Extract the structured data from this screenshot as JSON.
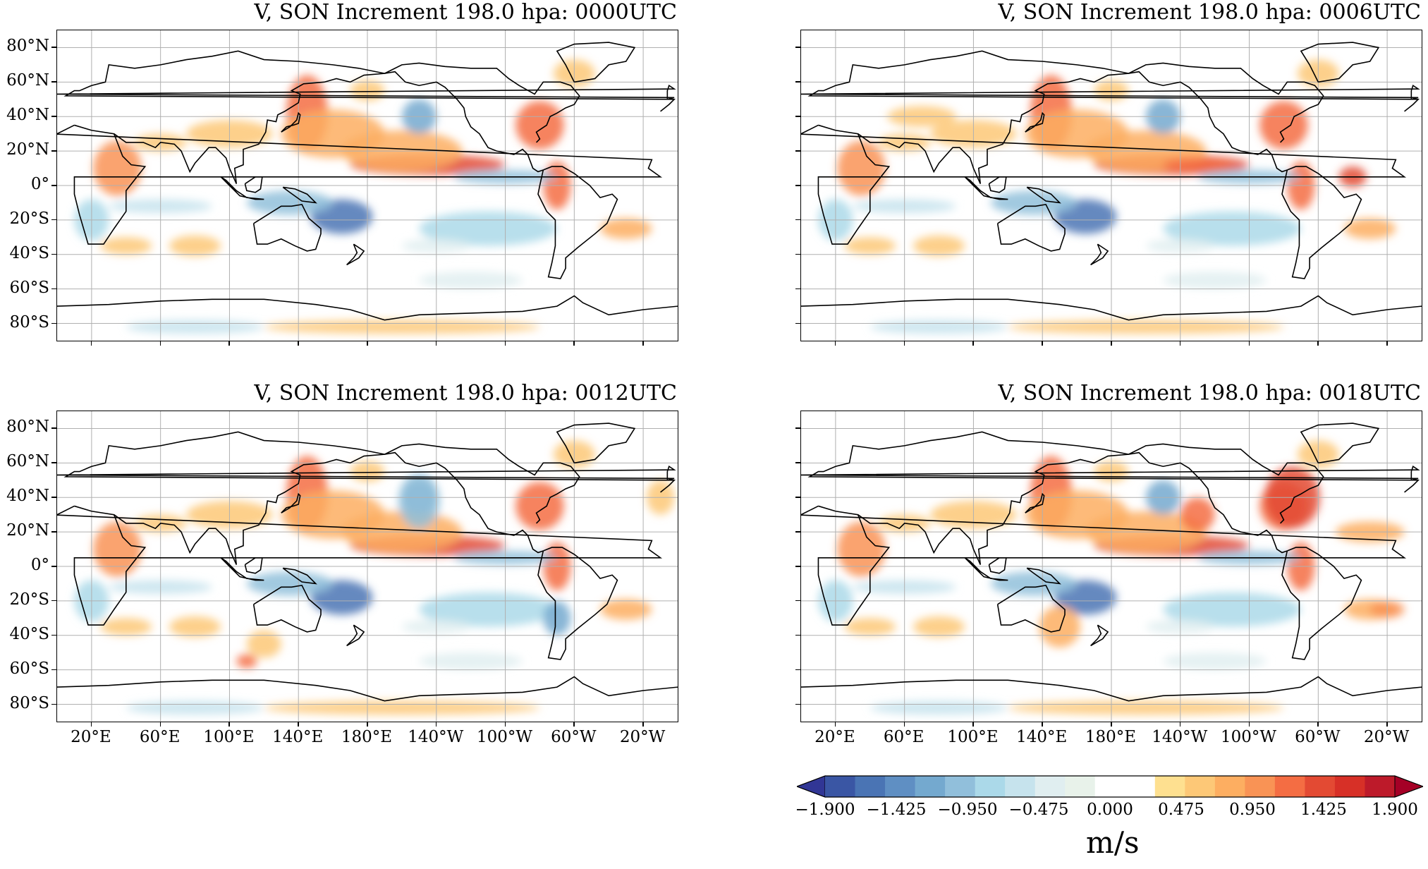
{
  "panels": [
    {
      "title": "V, SON Increment 198.0 hpa: 0000UTC",
      "show_ylabels": true,
      "show_xlabels": false
    },
    {
      "title": "V, SON Increment 198.0 hpa: 0006UTC",
      "show_ylabels": false,
      "show_xlabels": false
    },
    {
      "title": "V, SON Increment 198.0 hpa: 0012UTC",
      "show_ylabels": true,
      "show_xlabels": true
    },
    {
      "title": "V, SON Increment 198.0 hpa: 0018UTC",
      "show_ylabels": false,
      "show_xlabels": true
    }
  ],
  "lat_ticks": [
    "80°N",
    "60°N",
    "40°N",
    "20°N",
    "0°",
    "20°S",
    "40°S",
    "60°S",
    "80°S"
  ],
  "lon_ticks": [
    "20°E",
    "60°E",
    "100°E",
    "140°E",
    "180°E",
    "140°W",
    "100°W",
    "60°W",
    "20°W"
  ],
  "colorbar": {
    "tick_labels": [
      "−1.900",
      "−1.425",
      "−0.950",
      "−0.475",
      "0.000",
      "0.475",
      "0.950",
      "1.425",
      "1.900"
    ],
    "unit": "m/s",
    "colors": [
      "#313695",
      "#3a56a4",
      "#4a74b4",
      "#5f8fc3",
      "#74a9cf",
      "#91bfdb",
      "#abd9e9",
      "#c6e3ed",
      "#e0eef0",
      "#e8f2ea",
      "#ffffff",
      "#ffffff",
      "#fee090",
      "#fdc877",
      "#fdae61",
      "#f99355",
      "#f46d43",
      "#e34a33",
      "#d73027",
      "#bd1a2a",
      "#a50026"
    ]
  }
}
